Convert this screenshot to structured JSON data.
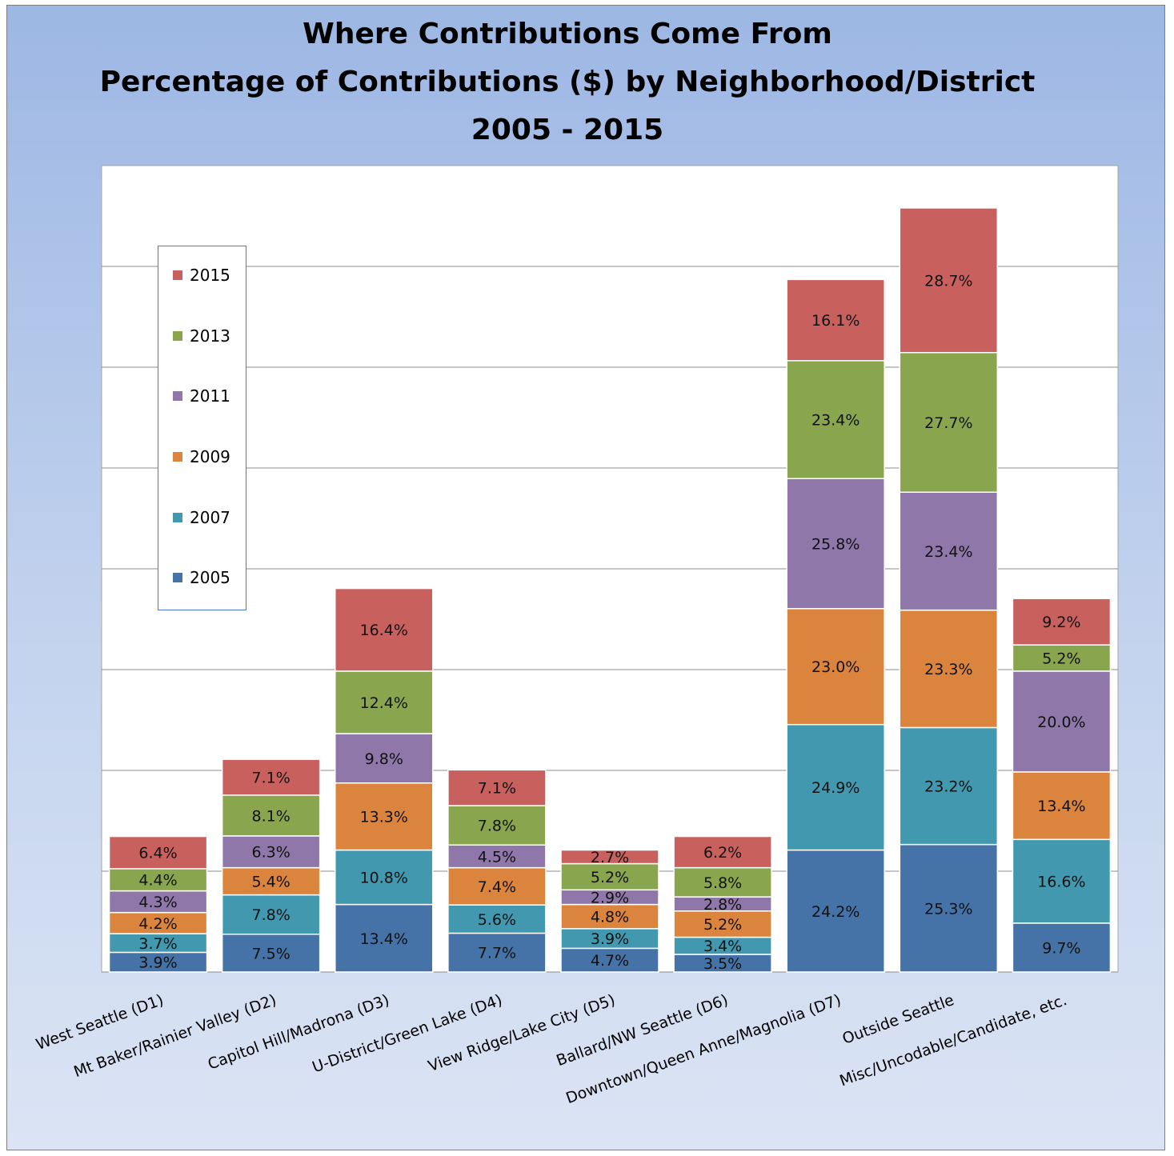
{
  "chart_data": {
    "type": "bar",
    "stacked": true,
    "title_lines": [
      "Where Contributions Come From",
      "Percentage of Contributions ($) by Neighborhood/District",
      "2005 - 2015"
    ],
    "categories": [
      "West Seattle (D1)",
      "Mt Baker/Rainier Valley (D2)",
      "Capitol Hill/Madrona (D3)",
      "U-District/Green Lake (D4)",
      "View Ridge/Lake City (D5)",
      "Ballard/NW Seattle (D6)",
      "Downtown/Queen Anne/Magnolia (D7)",
      "Outside Seattle",
      "Misc/Uncodable/Candidate, etc."
    ],
    "series": [
      {
        "name": "2005",
        "color": "#4572a7",
        "values": [
          3.9,
          7.5,
          13.4,
          7.7,
          4.7,
          3.5,
          24.2,
          25.3,
          9.7
        ]
      },
      {
        "name": "2007",
        "color": "#4198af",
        "values": [
          3.7,
          7.8,
          10.8,
          5.6,
          3.9,
          3.4,
          24.9,
          23.2,
          16.6
        ]
      },
      {
        "name": "2009",
        "color": "#db843d",
        "values": [
          4.2,
          5.4,
          13.3,
          7.4,
          4.8,
          5.2,
          23.0,
          23.3,
          13.4
        ]
      },
      {
        "name": "2011",
        "color": "#8f77aa",
        "values": [
          4.3,
          6.3,
          9.8,
          4.5,
          2.9,
          2.8,
          25.8,
          23.4,
          20.0
        ]
      },
      {
        "name": "2013",
        "color": "#89a54e",
        "values": [
          4.4,
          8.1,
          12.4,
          7.8,
          5.2,
          5.8,
          23.4,
          27.7,
          5.2
        ]
      },
      {
        "name": "2015",
        "color": "#c8605e",
        "values": [
          6.4,
          7.1,
          16.4,
          7.1,
          2.7,
          6.2,
          16.1,
          28.7,
          9.2
        ]
      }
    ],
    "data_labels": [
      [
        "3.9%",
        "7.5%",
        "13.4%",
        "7.7%",
        "4.7%",
        "3.5%",
        "24.2%",
        "25.3%",
        "9.7%"
      ],
      [
        "3.7%",
        "7.8%",
        "10.8%",
        "5.6%",
        "3.9%",
        "3.4%",
        "24.9%",
        "23.2%",
        "16.6%"
      ],
      [
        "4.2%",
        "5.4%",
        "13.3%",
        "7.4%",
        "4.8%",
        "5.2%",
        "23.0%",
        "23.3%",
        "13.4%"
      ],
      [
        "4.3%",
        "6.3%",
        "9.8%",
        "4.5%",
        "2.9%",
        "2.8%",
        "25.8%",
        "23.4%",
        "20.0%"
      ],
      [
        "4.4%",
        "8.1%",
        "12.4%",
        "7.8%",
        "5.2%",
        "5.8%",
        "23.4%",
        "27.7%",
        "5.2%"
      ],
      [
        "6.4%",
        "7.1%",
        "16.4%",
        "7.1%",
        "2.7%",
        "6.2%",
        "16.1%",
        "28.7%",
        "9.2%"
      ]
    ],
    "ylim": [
      0,
      160
    ],
    "grid": true,
    "xlabel": "",
    "ylabel": "",
    "legend_position": "left, inside plot",
    "legend_order": [
      "2015",
      "2013",
      "2011",
      "2009",
      "2007",
      "2005"
    ]
  }
}
